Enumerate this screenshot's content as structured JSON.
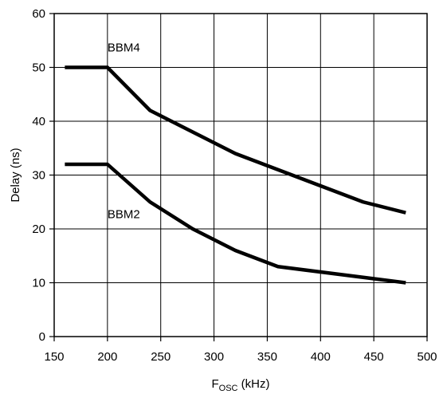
{
  "chart_data": {
    "type": "line",
    "xlabel": "F",
    "xlabel_sub": "OSC",
    "xlabel_unit": " (kHz)",
    "ylabel": "Delay (ns)",
    "xlim": [
      150,
      500
    ],
    "ylim": [
      0,
      60
    ],
    "xticks": [
      150,
      200,
      250,
      300,
      350,
      400,
      450,
      500
    ],
    "yticks": [
      0,
      10,
      20,
      30,
      40,
      50,
      60
    ],
    "grid": true,
    "series": [
      {
        "name": "BBM4",
        "label_at": [
          200,
          53
        ],
        "points": [
          [
            160,
            50
          ],
          [
            200,
            50
          ],
          [
            240,
            42
          ],
          [
            280,
            38
          ],
          [
            320,
            34
          ],
          [
            360,
            31
          ],
          [
            400,
            28
          ],
          [
            440,
            25
          ],
          [
            480,
            23
          ]
        ]
      },
      {
        "name": "BBM2",
        "label_at": [
          200,
          22
        ],
        "points": [
          [
            160,
            32
          ],
          [
            200,
            32
          ],
          [
            240,
            25
          ],
          [
            280,
            20
          ],
          [
            320,
            16
          ],
          [
            360,
            13
          ],
          [
            400,
            12
          ],
          [
            440,
            11
          ],
          [
            480,
            10
          ]
        ]
      }
    ]
  }
}
